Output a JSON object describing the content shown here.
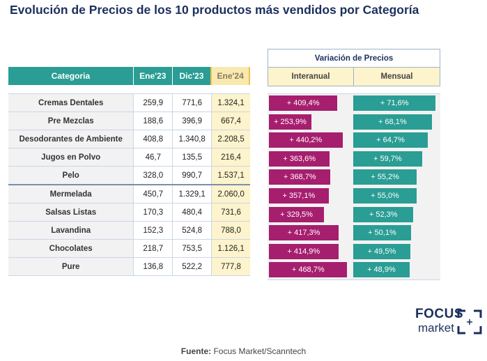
{
  "title": "Evolución de Precios de los 10 productos más vendidos por Categoría",
  "table": {
    "headers": {
      "categoria": "Categoria",
      "ene23": "Ene'23",
      "dic23": "Dic'23",
      "ene24": "Ene'24"
    },
    "rows": [
      {
        "categoria": "Cremas Dentales",
        "ene23": "259,9",
        "dic23": "771,6",
        "ene24": "1.324,1"
      },
      {
        "categoria": "Pre Mezclas",
        "ene23": "188,6",
        "dic23": "396,9",
        "ene24": "667,4"
      },
      {
        "categoria": "Desodorantes de Ambiente",
        "ene23": "408,8",
        "dic23": "1.340,8",
        "ene24": "2.208,5"
      },
      {
        "categoria": "Jugos en Polvo",
        "ene23": "46,7",
        "dic23": "135,5",
        "ene24": "216,4"
      },
      {
        "categoria": "Pelo",
        "ene23": "328,0",
        "dic23": "990,7",
        "ene24": "1.537,1"
      },
      {
        "categoria": "Mermelada",
        "ene23": "450,7",
        "dic23": "1.329,1",
        "ene24": "2.060,0"
      },
      {
        "categoria": "Salsas Listas",
        "ene23": "170,3",
        "dic23": "480,4",
        "ene24": "731,6"
      },
      {
        "categoria": "Lavandina",
        "ene23": "152,3",
        "dic23": "524,8",
        "ene24": "788,0"
      },
      {
        "categoria": "Chocolates",
        "ene23": "218,7",
        "dic23": "753,5",
        "ene24": "1.126,1"
      },
      {
        "categoria": "Pure",
        "ene23": "136,8",
        "dic23": "522,2",
        "ene24": "777,8"
      }
    ]
  },
  "variacion": {
    "title": "Variación de Precios",
    "interanual": "Interanual",
    "mensual": "Mensual"
  },
  "chart_data": {
    "type": "bar",
    "categories": [
      "Cremas Dentales",
      "Pre Mezclas",
      "Desodorantes de Ambiente",
      "Jugos en Polvo",
      "Pelo",
      "Mermelada",
      "Salsas Listas",
      "Lavandina",
      "Chocolates",
      "Pure"
    ],
    "series": [
      {
        "name": "Interanual",
        "values": [
          409.4,
          253.9,
          440.2,
          363.6,
          368.7,
          357.1,
          329.5,
          417.3,
          414.9,
          468.7
        ],
        "labels": [
          "+ 409,4%",
          "+ 253,9%",
          "+ 440,2%",
          "+ 363,6%",
          "+ 368,7%",
          "+ 357,1%",
          "+ 329,5%",
          "+ 417,3%",
          "+ 414,9%",
          "+ 468,7%"
        ],
        "color": "#a61e6e"
      },
      {
        "name": "Mensual",
        "values": [
          71.6,
          68.1,
          64.7,
          59.7,
          55.2,
          55.0,
          52.3,
          50.1,
          49.5,
          48.9
        ],
        "labels": [
          "+ 71,6%",
          "+ 68,1%",
          "+ 64,7%",
          "+ 59,7%",
          "+ 55,2%",
          "+ 55,0%",
          "+ 52,3%",
          "+ 50,1%",
          "+ 49,5%",
          "+ 48,9%"
        ],
        "color": "#2a9d94"
      }
    ]
  },
  "source": {
    "label": "Fuente:",
    "text": "Focus Market/Scanntech"
  },
  "logo": {
    "line1": "FOCUS",
    "line2": "market"
  },
  "colors": {
    "teal": "#2a9d94",
    "magenta": "#a61e6e",
    "highlight": "#fdf3cc",
    "title": "#1c2f5e"
  }
}
